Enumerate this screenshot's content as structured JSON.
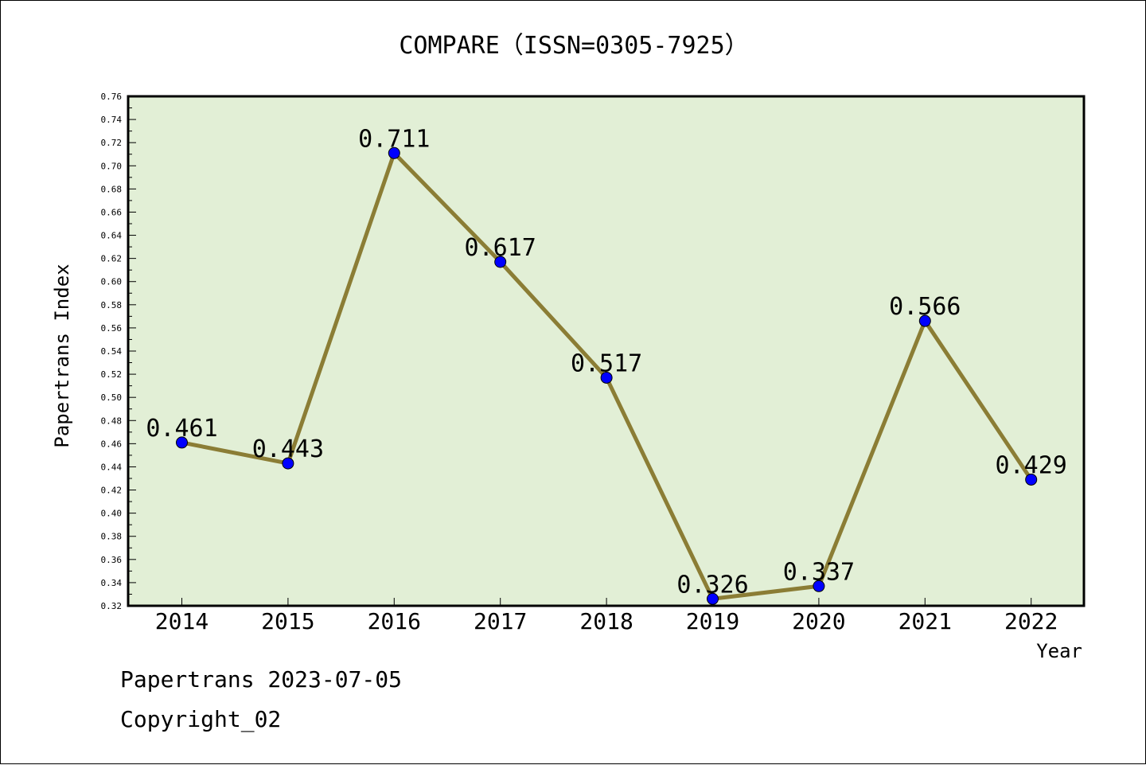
{
  "chart_data": {
    "type": "line",
    "title": "COMPARE（ISSN=0305-7925）",
    "xlabel": "Year",
    "ylabel": "Papertrans Index",
    "categories": [
      "2014",
      "2015",
      "2016",
      "2017",
      "2018",
      "2019",
      "2020",
      "2021",
      "2022"
    ],
    "series": [
      {
        "values": [
          0.461,
          0.443,
          0.711,
          0.617,
          0.517,
          0.326,
          0.337,
          0.566,
          0.429
        ],
        "data_labels": [
          "0.461",
          "0.443",
          "0.711",
          "0.617",
          "0.517",
          "0.326",
          "0.337",
          "0.566",
          "0.429"
        ]
      }
    ],
    "ylim": [
      0.32,
      0.76
    ],
    "yticks": [
      "0.32",
      "0.34",
      "0.36",
      "0.38",
      "0.40",
      "0.42",
      "0.44",
      "0.46",
      "0.48",
      "0.50",
      "0.52",
      "0.54",
      "0.56",
      "0.58",
      "0.60",
      "0.62",
      "0.64",
      "0.66",
      "0.68",
      "0.70",
      "0.72",
      "0.74",
      "0.76"
    ],
    "grid": false,
    "legend": "none",
    "colors": {
      "plot_background": "#e2efd6",
      "line": "#8b7d35",
      "marker": "#0000ff",
      "axis": "#000000"
    }
  },
  "footer": {
    "line1": "Papertrans 2023-07-05",
    "line2": "Copyright_02"
  }
}
